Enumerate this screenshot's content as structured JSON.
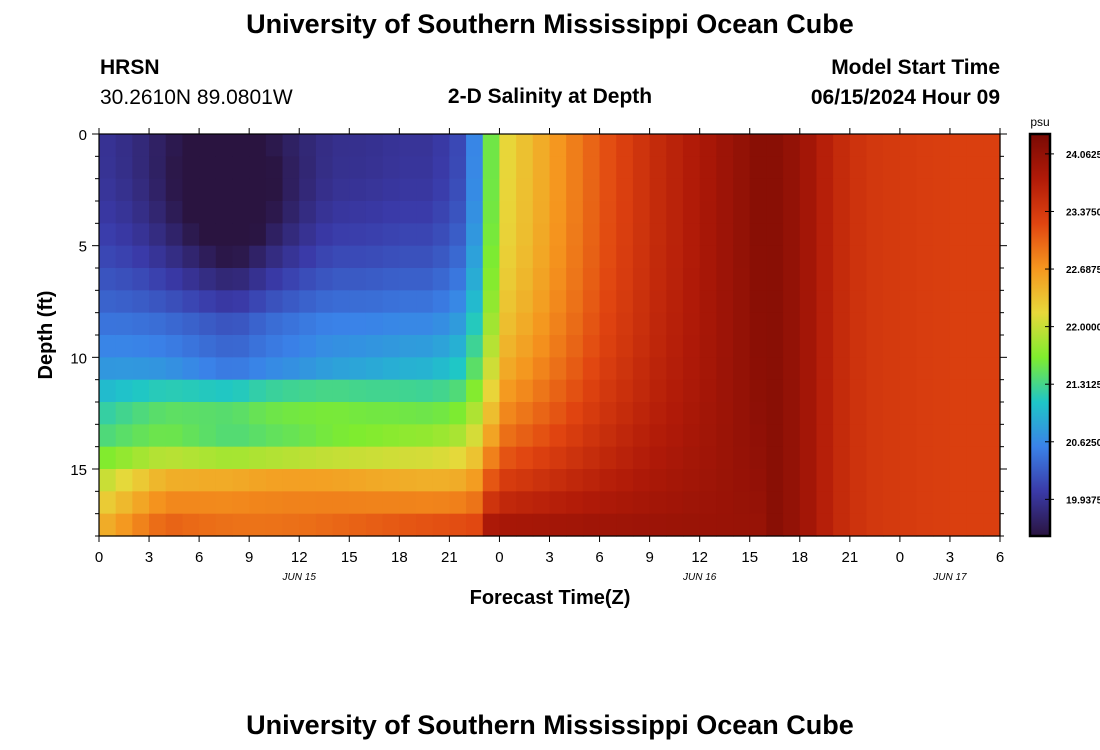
{
  "page": {
    "title": "University of Southern Mississippi Ocean Cube",
    "title_repeat": "University of Southern Mississippi Ocean Cube",
    "station": "HRSN",
    "coords": "30.2610N  89.0801W",
    "chart_title": "2-D Salinity at Depth",
    "model_start_label": "Model Start Time",
    "model_start_value": "06/15/2024 Hour 09"
  },
  "chart_data": {
    "type": "heatmap",
    "title": "2-D Salinity at Depth",
    "xlabel": "Forecast Time(Z)",
    "ylabel": "Depth (ft)",
    "x_start_hour": 0,
    "x_end_hour": 54,
    "x_step_hours": 1,
    "x_tick_labels": [
      "0",
      "3",
      "6",
      "9",
      "12",
      "15",
      "18",
      "21",
      "0",
      "3",
      "6",
      "9",
      "12",
      "15",
      "18",
      "21",
      "0",
      "3",
      "6"
    ],
    "x_tick_hours": [
      0,
      3,
      6,
      9,
      12,
      15,
      18,
      21,
      24,
      27,
      30,
      33,
      36,
      39,
      42,
      45,
      48,
      51,
      54
    ],
    "date_labels": [
      {
        "label": "JUN 15",
        "hour": 12
      },
      {
        "label": "JUN 16",
        "hour": 36
      },
      {
        "label": "JUN 17",
        "hour": 51
      }
    ],
    "ylim": [
      0,
      18
    ],
    "y_tick_labels": [
      "0",
      "5",
      "10",
      "15"
    ],
    "y_tick_values": [
      0,
      5,
      10,
      15
    ],
    "depth_layers": 18,
    "colorbar": {
      "unit": "psu",
      "range": [
        19.5,
        24.3
      ],
      "tick_labels": [
        "24.0625",
        "23.3750",
        "22.6875",
        "22.0000",
        "21.3125",
        "20.6250",
        "19.9375"
      ],
      "tick_values": [
        24.0625,
        23.375,
        22.6875,
        22.0,
        21.3125,
        20.625,
        19.9375
      ],
      "colors": [
        "#2a1440",
        "#3a3aa8",
        "#3a82e8",
        "#1ec6c8",
        "#7fec2e",
        "#e8d83a",
        "#f5951e",
        "#e04410",
        "#b01a08",
        "#7a0a04"
      ]
    }
  }
}
